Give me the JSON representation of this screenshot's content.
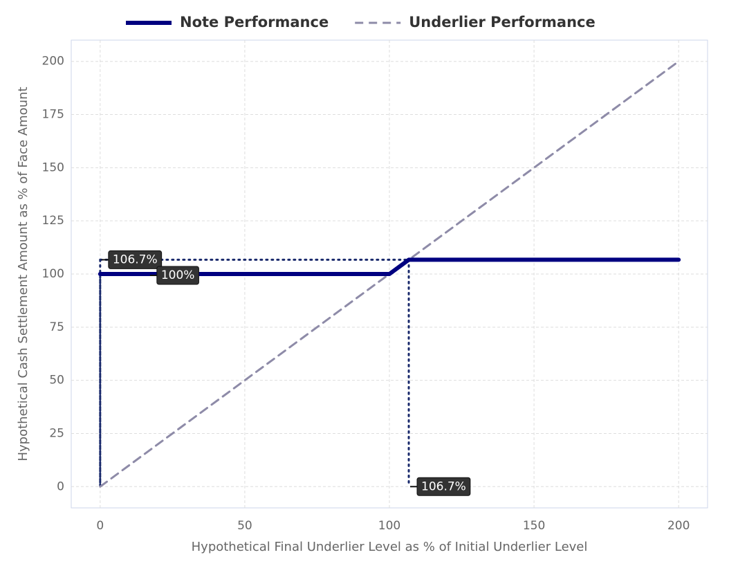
{
  "chart_data": {
    "type": "line",
    "x_label": "Hypothetical Final Underlier Level as % of Initial Underlier Level",
    "y_label": "Hypothetical Cash Settlement Amount as % of Face Amount",
    "xlim": [
      -10,
      210
    ],
    "ylim": [
      -10,
      210
    ],
    "xticks": [
      0,
      50,
      100,
      150,
      200
    ],
    "yticks": [
      0,
      25,
      50,
      75,
      100,
      125,
      150,
      175,
      200
    ],
    "grid": true,
    "legend": "top",
    "series": [
      {
        "name": "Note Performance",
        "color": "#000080",
        "style": "solid",
        "x": [
          0,
          100,
          106.7,
          200
        ],
        "values": [
          100,
          100,
          106.7,
          106.7
        ]
      },
      {
        "name": "Underlier Performance",
        "color": "#8e8ba8",
        "style": "dashed",
        "x": [
          0,
          200
        ],
        "values": [
          0,
          200
        ]
      }
    ],
    "annotations": [
      {
        "axis": "y",
        "value": 106.7,
        "label": "106.7%"
      },
      {
        "axis": "y",
        "value": 100,
        "label": "100%"
      },
      {
        "axis": "x",
        "value": 106.7,
        "label": "106.7%"
      }
    ]
  }
}
